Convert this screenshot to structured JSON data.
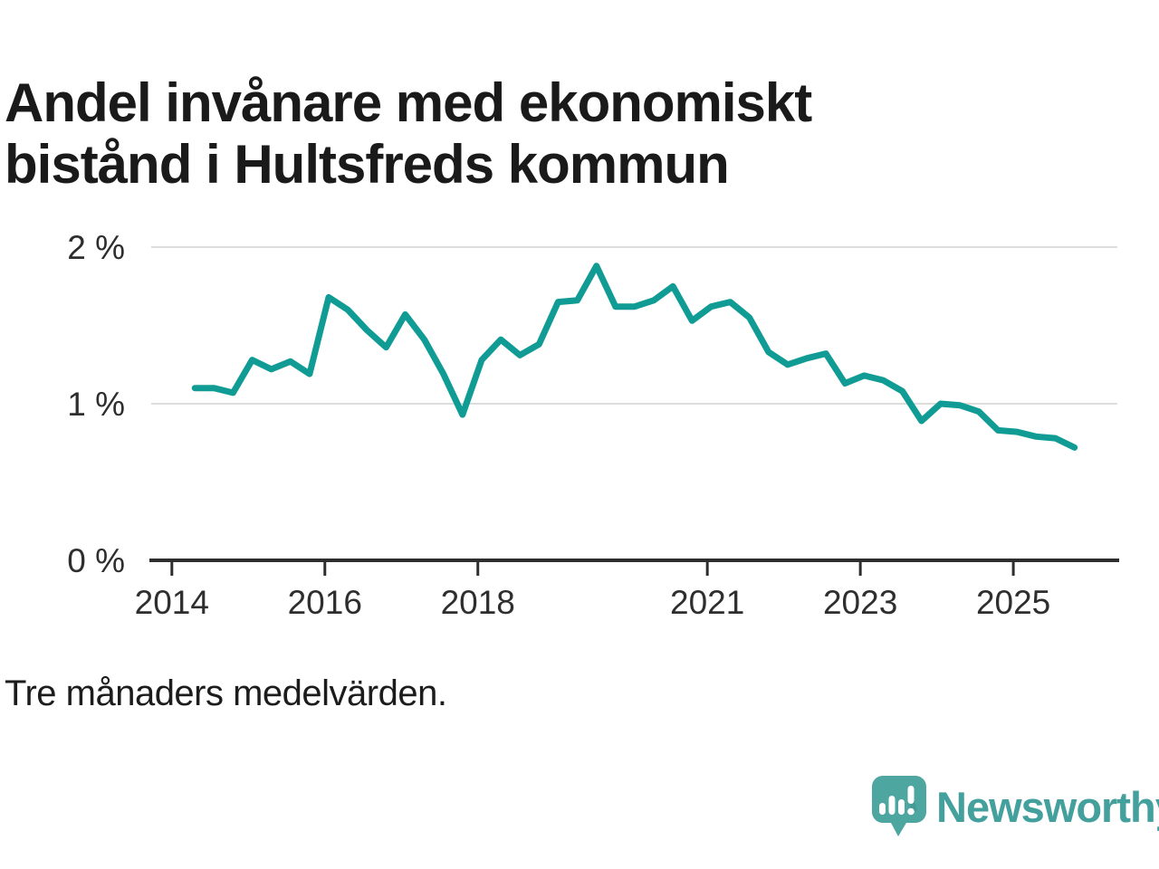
{
  "title": {
    "line1": "Andel invånare med ekonomiskt",
    "line2": "bistånd i Hultsfreds kommun",
    "color": "#1a1a1a"
  },
  "footnote": {
    "text": "Tre månaders medelvärden."
  },
  "branding": {
    "wordmark": "Newsworthy",
    "logo_icon": "speech-bubble-bar-chart-icon",
    "mark_color": "#4ea6a1",
    "wordmark_color": "#43a09d"
  },
  "chart_data": {
    "type": "line",
    "title": "Andel invånare med ekonomiskt bistånd i Hultsfreds kommun",
    "note": "Tre månaders medelvärden.",
    "unit": "%",
    "grid": "horizontal",
    "legend": "none",
    "xlim": [
      2013.73,
      2026.36
    ],
    "ylim": [
      0,
      2.22
    ],
    "x_ticks": [
      2014,
      2016,
      2018,
      2021,
      2023,
      2025
    ],
    "x_tick_labels": [
      "2014",
      "2016",
      "2018",
      "2021",
      "2023",
      "2025"
    ],
    "y_ticks": [
      0,
      1,
      2
    ],
    "y_tick_labels": [
      "0 %",
      "1 %",
      "2 %"
    ],
    "line_color": "#109c94",
    "gridline_color": "#dddddd",
    "axis_color": "#2e2e2e",
    "tick_label_color": "#2e2e2e",
    "series": [
      {
        "name": "Andel invånare med ekonomiskt bistånd (%)",
        "x_start": 2014.3,
        "x_step": 0.25,
        "x_end": 2025.8,
        "values": [
          1.1,
          1.1,
          1.07,
          1.28,
          1.22,
          1.27,
          1.19,
          1.68,
          1.6,
          1.47,
          1.36,
          1.57,
          1.41,
          1.19,
          0.93,
          1.28,
          1.41,
          1.31,
          1.38,
          1.65,
          1.66,
          1.88,
          1.62,
          1.62,
          1.66,
          1.75,
          1.53,
          1.62,
          1.65,
          1.55,
          1.33,
          1.25,
          1.29,
          1.32,
          1.13,
          1.18,
          1.15,
          1.08,
          0.89,
          1.0,
          0.99,
          0.95,
          0.83,
          0.82,
          0.79,
          0.78,
          0.72
        ]
      }
    ]
  }
}
